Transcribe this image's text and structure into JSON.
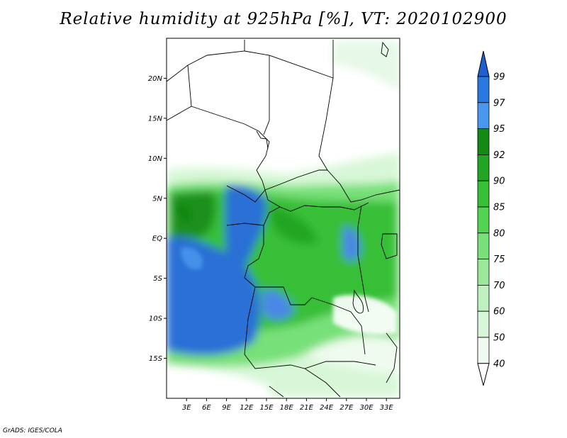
{
  "title": "Relative humidity at 925hPa [%], VT: 2020102900",
  "credit": "GrADS: IGES/COLA",
  "map": {
    "lat_ticks": [
      "20N",
      "15N",
      "10N",
      "5N",
      "EQ",
      "5S",
      "10S",
      "15S"
    ],
    "lat_values": [
      20,
      15,
      10,
      5,
      0,
      -5,
      -10,
      -15
    ],
    "lon_ticks": [
      "3E",
      "6E",
      "9E",
      "12E",
      "15E",
      "18E",
      "21E",
      "24E",
      "27E",
      "30E",
      "33E"
    ],
    "lon_values": [
      3,
      6,
      9,
      12,
      15,
      18,
      21,
      24,
      27,
      30,
      33
    ],
    "lon_range": [
      0,
      35
    ],
    "lat_range": [
      -20,
      25
    ]
  },
  "colorbar": {
    "labels": [
      "99",
      "97",
      "95",
      "92",
      "90",
      "85",
      "80",
      "75",
      "70",
      "60",
      "50",
      "40"
    ],
    "colors": [
      "#1f5fcf",
      "#2a79e0",
      "#4a98ee",
      "#138a13",
      "#22a622",
      "#37bf37",
      "#52d352",
      "#78e078",
      "#9be89b",
      "#bff0bf",
      "#d8f7d8",
      "#eefbee",
      "#ffffff"
    ],
    "top_color": "#1f5fcf",
    "bottom_color": "#ffffff"
  }
}
